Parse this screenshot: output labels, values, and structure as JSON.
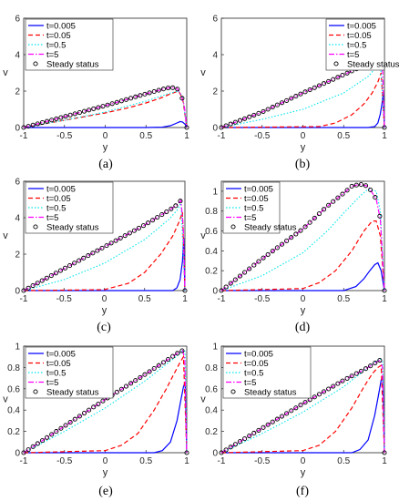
{
  "figure": {
    "captions": [
      "(a)",
      "(b)",
      "(c)",
      "(d)",
      "(e)",
      "(f)"
    ]
  },
  "series_styles": [
    {
      "name": "t=0.005",
      "color": "#0000ff",
      "style": "solid"
    },
    {
      "name": "t=0.05",
      "color": "#ff0000",
      "style": "dashed"
    },
    {
      "name": "t=0.5",
      "color": "#00e5ee",
      "style": "dotted"
    },
    {
      "name": "t=5",
      "color": "#ff00ff",
      "style": "dashdot"
    },
    {
      "name": "Steady status",
      "color": "#000000",
      "style": "circle-markers"
    }
  ],
  "chart_data": [
    {
      "type": "line",
      "caption": "(a)",
      "xlabel": "y",
      "ylabel": "v",
      "xlim": [
        -1,
        1
      ],
      "ylim": [
        0,
        6
      ],
      "xticks": [
        "-1",
        "-0.5",
        "0",
        "0.5",
        "1"
      ],
      "yticks": [
        "0",
        "2",
        "4",
        "6"
      ],
      "legend": [
        "t=0.005",
        "t=0.05",
        "t=0.5",
        "t=5",
        "Steady status"
      ],
      "legend_position": "top-left",
      "series": [
        {
          "name": "t=0.005",
          "x": [
            -1,
            0.5,
            0.7,
            0.8,
            0.88,
            0.92,
            0.95,
            0.98,
            1
          ],
          "y": [
            0,
            0,
            0.02,
            0.1,
            0.25,
            0.33,
            0.3,
            0.18,
            0
          ]
        },
        {
          "name": "t=0.05",
          "x": [
            -1,
            -0.5,
            0,
            0.3,
            0.5,
            0.7,
            0.8,
            0.9,
            0.95,
            1
          ],
          "y": [
            0,
            0.4,
            0.8,
            1.1,
            1.35,
            1.65,
            1.85,
            2.0,
            1.6,
            0
          ]
        },
        {
          "name": "t=0.5",
          "x": [
            -1,
            -0.5,
            0,
            0.5,
            0.8,
            0.9,
            0.95,
            1
          ],
          "y": [
            0,
            0.4,
            0.85,
            1.45,
            1.9,
            2.0,
            1.7,
            0
          ]
        },
        {
          "name": "t=5",
          "x": [
            -1,
            -0.5,
            0,
            0.5,
            0.7,
            0.8,
            0.88,
            0.93,
            0.97,
            1
          ],
          "y": [
            0,
            0.6,
            1.2,
            1.85,
            2.1,
            2.2,
            2.15,
            1.8,
            1.2,
            0
          ]
        },
        {
          "name": "Steady status",
          "x": [
            -1,
            -0.5,
            0,
            0.5,
            0.7,
            0.8,
            0.88,
            0.93,
            0.97,
            1
          ],
          "y": [
            0,
            0.6,
            1.2,
            1.85,
            2.1,
            2.2,
            2.15,
            1.8,
            1.2,
            0
          ]
        }
      ]
    },
    {
      "type": "line",
      "caption": "(b)",
      "xlabel": "y",
      "ylabel": "v",
      "xlim": [
        -1,
        1
      ],
      "ylim": [
        0,
        6
      ],
      "xticks": [
        "-1",
        "-0.5",
        "0",
        "0.5",
        "1"
      ],
      "yticks": [
        "0",
        "2",
        "4",
        "6"
      ],
      "legend": [
        "t=0.005",
        "t=0.05",
        "t=0.5",
        "t=5",
        "Steady status"
      ],
      "legend_position": "top-right",
      "series": [
        {
          "name": "t=0.005",
          "x": [
            -1,
            0.8,
            0.88,
            0.92,
            0.95,
            0.97,
            0.985,
            1
          ],
          "y": [
            0,
            0,
            0.05,
            0.25,
            0.75,
            1.3,
            1.9,
            0
          ]
        },
        {
          "name": "t=0.05",
          "x": [
            -1,
            0.2,
            0.4,
            0.6,
            0.75,
            0.85,
            0.92,
            0.96,
            1
          ],
          "y": [
            0,
            0.05,
            0.25,
            0.7,
            1.3,
            1.9,
            2.5,
            3.0,
            0
          ]
        },
        {
          "name": "t=0.5",
          "x": [
            -1,
            -0.5,
            0,
            0.5,
            0.8,
            0.9,
            0.95,
            1
          ],
          "y": [
            0,
            0.45,
            1.0,
            1.9,
            2.8,
            3.3,
            3.7,
            0
          ]
        },
        {
          "name": "t=5",
          "x": [
            -1,
            -0.5,
            0,
            0.5,
            0.8,
            0.9,
            0.95,
            0.98,
            1
          ],
          "y": [
            0,
            0.85,
            1.9,
            2.9,
            3.5,
            3.85,
            3.95,
            3.0,
            0
          ]
        },
        {
          "name": "Steady status",
          "x": [
            -1,
            -0.5,
            0,
            0.5,
            0.8,
            0.9,
            0.95,
            0.98,
            1
          ],
          "y": [
            0,
            0.85,
            1.9,
            2.9,
            3.5,
            3.85,
            3.95,
            3.0,
            0
          ]
        }
      ]
    },
    {
      "type": "line",
      "caption": "(c)",
      "xlabel": "y",
      "ylabel": "v",
      "xlim": [
        -1,
        1
      ],
      "ylim": [
        0,
        6
      ],
      "xticks": [
        "-1",
        "-0.5",
        "0",
        "0.5",
        "1"
      ],
      "yticks": [
        "0",
        "2",
        "4",
        "6"
      ],
      "legend": [
        "t=0.005",
        "t=0.05",
        "t=0.5",
        "t=5",
        "Steady status"
      ],
      "legend_position": "top-left",
      "series": [
        {
          "name": "t=0.005",
          "x": [
            -1,
            0.85,
            0.9,
            0.94,
            0.97,
            0.985,
            1
          ],
          "y": [
            0,
            0,
            0.15,
            0.6,
            1.6,
            2.9,
            0
          ]
        },
        {
          "name": "t=0.05",
          "x": [
            -1,
            0,
            0.3,
            0.5,
            0.7,
            0.85,
            0.93,
            0.97,
            1
          ],
          "y": [
            0,
            0.05,
            0.4,
            1.0,
            2.0,
            3.0,
            3.8,
            4.3,
            0
          ]
        },
        {
          "name": "t=0.5",
          "x": [
            -1,
            -0.5,
            0,
            0.5,
            0.8,
            0.9,
            0.95,
            1
          ],
          "y": [
            0,
            0.6,
            1.5,
            2.8,
            3.9,
            4.4,
            4.8,
            0
          ]
        },
        {
          "name": "t=5",
          "x": [
            -1,
            -0.5,
            0,
            0.5,
            0.8,
            0.9,
            0.95,
            0.98,
            1
          ],
          "y": [
            0,
            1.2,
            2.4,
            3.6,
            4.4,
            4.7,
            4.95,
            3.5,
            0
          ]
        },
        {
          "name": "Steady status",
          "x": [
            -1,
            -0.5,
            0,
            0.5,
            0.8,
            0.9,
            0.95,
            0.98,
            1
          ],
          "y": [
            0,
            1.2,
            2.4,
            3.6,
            4.4,
            4.7,
            4.95,
            3.5,
            0
          ]
        }
      ]
    },
    {
      "type": "line",
      "caption": "(d)",
      "xlabel": "y",
      "ylabel": "v",
      "xlim": [
        -1,
        1
      ],
      "ylim": [
        0,
        1.1
      ],
      "xticks": [
        "-1",
        "-0.5",
        "0",
        "0.5",
        "1"
      ],
      "yticks": [
        "0",
        "0.2",
        "0.4",
        "0.6",
        "0.8",
        "1"
      ],
      "legend": [
        "t=0.005",
        "t=0.05",
        "t=0.5",
        "t=5",
        "Steady status"
      ],
      "legend_position": "top-left",
      "series": [
        {
          "name": "t=0.005",
          "x": [
            -1,
            0.5,
            0.65,
            0.75,
            0.82,
            0.88,
            0.92,
            0.96,
            1
          ],
          "y": [
            0,
            0,
            0.04,
            0.12,
            0.2,
            0.26,
            0.28,
            0.2,
            0
          ]
        },
        {
          "name": "t=0.05",
          "x": [
            -1,
            0,
            0.2,
            0.4,
            0.6,
            0.75,
            0.85,
            0.9,
            0.95,
            1
          ],
          "y": [
            0,
            0.02,
            0.08,
            0.2,
            0.4,
            0.6,
            0.7,
            0.7,
            0.55,
            0
          ]
        },
        {
          "name": "t=0.5",
          "x": [
            -1,
            -0.5,
            0,
            0.3,
            0.5,
            0.7,
            0.8,
            0.9,
            0.95,
            1
          ],
          "y": [
            0,
            0.15,
            0.38,
            0.6,
            0.78,
            0.95,
            1.02,
            1.0,
            0.8,
            0
          ]
        },
        {
          "name": "t=5",
          "x": [
            -1,
            -0.5,
            0,
            0.3,
            0.5,
            0.6,
            0.7,
            0.8,
            0.9,
            0.95,
            1
          ],
          "y": [
            0,
            0.32,
            0.62,
            0.85,
            0.98,
            1.05,
            1.07,
            1.05,
            0.92,
            0.72,
            0
          ]
        },
        {
          "name": "Steady status",
          "x": [
            -1,
            -0.5,
            0,
            0.3,
            0.5,
            0.6,
            0.7,
            0.8,
            0.9,
            0.95,
            1
          ],
          "y": [
            0,
            0.32,
            0.62,
            0.85,
            0.98,
            1.05,
            1.07,
            1.05,
            0.92,
            0.72,
            0
          ]
        }
      ]
    },
    {
      "type": "line",
      "caption": "(e)",
      "xlabel": "y",
      "ylabel": "v",
      "xlim": [
        -1,
        1
      ],
      "ylim": [
        0,
        1.0
      ],
      "xticks": [
        "-1",
        "-0.5",
        "0",
        "0.5",
        "1"
      ],
      "yticks": [
        "0",
        "0.2",
        "0.4",
        "0.6",
        "0.8",
        "1"
      ],
      "legend": [
        "t=0.005",
        "t=0.05",
        "t=0.5",
        "t=5",
        "Steady status"
      ],
      "legend_position": "top-left",
      "series": [
        {
          "name": "t=0.005",
          "x": [
            -1,
            0.6,
            0.7,
            0.8,
            0.88,
            0.93,
            0.96,
            0.98,
            1
          ],
          "y": [
            0,
            0,
            0.02,
            0.1,
            0.3,
            0.5,
            0.62,
            0.66,
            0
          ]
        },
        {
          "name": "t=0.05",
          "x": [
            -1,
            0,
            0.2,
            0.4,
            0.6,
            0.75,
            0.85,
            0.92,
            0.96,
            1
          ],
          "y": [
            0,
            0.02,
            0.07,
            0.18,
            0.4,
            0.6,
            0.75,
            0.85,
            0.9,
            0
          ]
        },
        {
          "name": "t=0.5",
          "x": [
            -1,
            -0.5,
            0,
            0.5,
            0.8,
            0.9,
            0.95,
            0.98,
            1
          ],
          "y": [
            0,
            0.2,
            0.42,
            0.68,
            0.86,
            0.92,
            0.96,
            0.95,
            0
          ]
        },
        {
          "name": "t=5",
          "x": [
            -1,
            -0.5,
            0,
            0.5,
            0.8,
            0.9,
            0.95,
            0.975,
            1
          ],
          "y": [
            0,
            0.25,
            0.5,
            0.74,
            0.89,
            0.94,
            0.96,
            0.88,
            0
          ]
        },
        {
          "name": "Steady status",
          "x": [
            -1,
            -0.5,
            0,
            0.5,
            0.8,
            0.9,
            0.95,
            0.975,
            1
          ],
          "y": [
            0,
            0.25,
            0.5,
            0.74,
            0.89,
            0.94,
            0.96,
            0.88,
            0
          ]
        }
      ]
    },
    {
      "type": "line",
      "caption": "(f)",
      "xlabel": "y",
      "ylabel": "v",
      "xlim": [
        -1,
        1
      ],
      "ylim": [
        0,
        1.0
      ],
      "xticks": [
        "-1",
        "-0.5",
        "0",
        "0.5",
        "1"
      ],
      "yticks": [
        "0",
        "0.2",
        "0.4",
        "0.6",
        "0.8",
        "1"
      ],
      "legend": [
        "t=0.005",
        "t=0.05",
        "t=0.5",
        "t=5",
        "Steady status"
      ],
      "legend_position": "top-left",
      "series": [
        {
          "name": "t=0.005",
          "x": [
            -1,
            0.6,
            0.7,
            0.8,
            0.88,
            0.93,
            0.96,
            0.98,
            1
          ],
          "y": [
            0,
            0,
            0.03,
            0.12,
            0.35,
            0.55,
            0.68,
            0.72,
            0
          ]
        },
        {
          "name": "t=0.05",
          "x": [
            -1,
            0,
            0.2,
            0.4,
            0.6,
            0.75,
            0.85,
            0.92,
            0.96,
            1
          ],
          "y": [
            0,
            0.02,
            0.07,
            0.2,
            0.42,
            0.62,
            0.74,
            0.8,
            0.82,
            0
          ]
        },
        {
          "name": "t=0.5",
          "x": [
            -1,
            -0.5,
            0,
            0.5,
            0.8,
            0.9,
            0.95,
            0.98,
            1
          ],
          "y": [
            0,
            0.18,
            0.38,
            0.62,
            0.8,
            0.86,
            0.88,
            0.85,
            0
          ]
        },
        {
          "name": "t=5",
          "x": [
            -1,
            -0.5,
            0,
            0.5,
            0.8,
            0.9,
            0.95,
            0.975,
            1
          ],
          "y": [
            0,
            0.23,
            0.46,
            0.68,
            0.8,
            0.85,
            0.87,
            0.8,
            0
          ]
        },
        {
          "name": "Steady status",
          "x": [
            -1,
            -0.5,
            0,
            0.5,
            0.8,
            0.9,
            0.95,
            0.975,
            1
          ],
          "y": [
            0,
            0.23,
            0.46,
            0.68,
            0.8,
            0.85,
            0.87,
            0.8,
            0
          ]
        }
      ]
    }
  ]
}
